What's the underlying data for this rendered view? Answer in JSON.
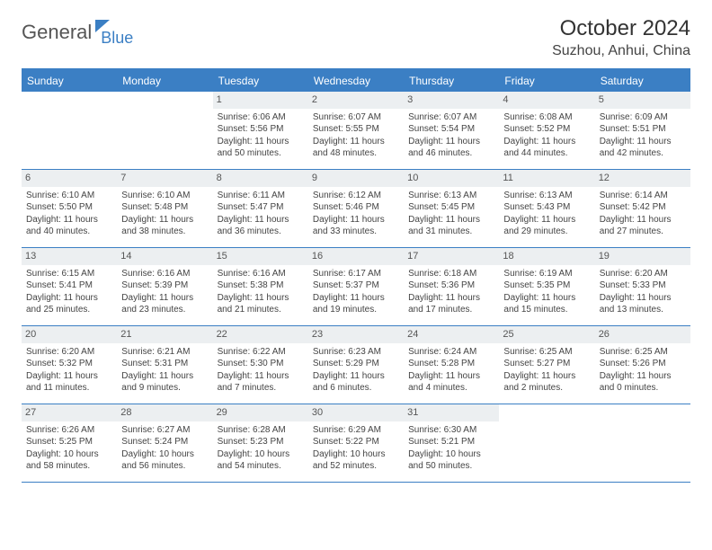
{
  "logo": {
    "general": "General",
    "blue": "Blue"
  },
  "title": "October 2024",
  "location": "Suzhou, Anhui, China",
  "header_bg": "#3b7fc4",
  "daynum_bg": "#eceff1",
  "days_of_week": [
    "Sunday",
    "Monday",
    "Tuesday",
    "Wednesday",
    "Thursday",
    "Friday",
    "Saturday"
  ],
  "weeks": [
    [
      {
        "n": "",
        "sunrise": "",
        "sunset": "",
        "daylight": ""
      },
      {
        "n": "",
        "sunrise": "",
        "sunset": "",
        "daylight": ""
      },
      {
        "n": "1",
        "sunrise": "Sunrise: 6:06 AM",
        "sunset": "Sunset: 5:56 PM",
        "daylight": "Daylight: 11 hours and 50 minutes."
      },
      {
        "n": "2",
        "sunrise": "Sunrise: 6:07 AM",
        "sunset": "Sunset: 5:55 PM",
        "daylight": "Daylight: 11 hours and 48 minutes."
      },
      {
        "n": "3",
        "sunrise": "Sunrise: 6:07 AM",
        "sunset": "Sunset: 5:54 PM",
        "daylight": "Daylight: 11 hours and 46 minutes."
      },
      {
        "n": "4",
        "sunrise": "Sunrise: 6:08 AM",
        "sunset": "Sunset: 5:52 PM",
        "daylight": "Daylight: 11 hours and 44 minutes."
      },
      {
        "n": "5",
        "sunrise": "Sunrise: 6:09 AM",
        "sunset": "Sunset: 5:51 PM",
        "daylight": "Daylight: 11 hours and 42 minutes."
      }
    ],
    [
      {
        "n": "6",
        "sunrise": "Sunrise: 6:10 AM",
        "sunset": "Sunset: 5:50 PM",
        "daylight": "Daylight: 11 hours and 40 minutes."
      },
      {
        "n": "7",
        "sunrise": "Sunrise: 6:10 AM",
        "sunset": "Sunset: 5:48 PM",
        "daylight": "Daylight: 11 hours and 38 minutes."
      },
      {
        "n": "8",
        "sunrise": "Sunrise: 6:11 AM",
        "sunset": "Sunset: 5:47 PM",
        "daylight": "Daylight: 11 hours and 36 minutes."
      },
      {
        "n": "9",
        "sunrise": "Sunrise: 6:12 AM",
        "sunset": "Sunset: 5:46 PM",
        "daylight": "Daylight: 11 hours and 33 minutes."
      },
      {
        "n": "10",
        "sunrise": "Sunrise: 6:13 AM",
        "sunset": "Sunset: 5:45 PM",
        "daylight": "Daylight: 11 hours and 31 minutes."
      },
      {
        "n": "11",
        "sunrise": "Sunrise: 6:13 AM",
        "sunset": "Sunset: 5:43 PM",
        "daylight": "Daylight: 11 hours and 29 minutes."
      },
      {
        "n": "12",
        "sunrise": "Sunrise: 6:14 AM",
        "sunset": "Sunset: 5:42 PM",
        "daylight": "Daylight: 11 hours and 27 minutes."
      }
    ],
    [
      {
        "n": "13",
        "sunrise": "Sunrise: 6:15 AM",
        "sunset": "Sunset: 5:41 PM",
        "daylight": "Daylight: 11 hours and 25 minutes."
      },
      {
        "n": "14",
        "sunrise": "Sunrise: 6:16 AM",
        "sunset": "Sunset: 5:39 PM",
        "daylight": "Daylight: 11 hours and 23 minutes."
      },
      {
        "n": "15",
        "sunrise": "Sunrise: 6:16 AM",
        "sunset": "Sunset: 5:38 PM",
        "daylight": "Daylight: 11 hours and 21 minutes."
      },
      {
        "n": "16",
        "sunrise": "Sunrise: 6:17 AM",
        "sunset": "Sunset: 5:37 PM",
        "daylight": "Daylight: 11 hours and 19 minutes."
      },
      {
        "n": "17",
        "sunrise": "Sunrise: 6:18 AM",
        "sunset": "Sunset: 5:36 PM",
        "daylight": "Daylight: 11 hours and 17 minutes."
      },
      {
        "n": "18",
        "sunrise": "Sunrise: 6:19 AM",
        "sunset": "Sunset: 5:35 PM",
        "daylight": "Daylight: 11 hours and 15 minutes."
      },
      {
        "n": "19",
        "sunrise": "Sunrise: 6:20 AM",
        "sunset": "Sunset: 5:33 PM",
        "daylight": "Daylight: 11 hours and 13 minutes."
      }
    ],
    [
      {
        "n": "20",
        "sunrise": "Sunrise: 6:20 AM",
        "sunset": "Sunset: 5:32 PM",
        "daylight": "Daylight: 11 hours and 11 minutes."
      },
      {
        "n": "21",
        "sunrise": "Sunrise: 6:21 AM",
        "sunset": "Sunset: 5:31 PM",
        "daylight": "Daylight: 11 hours and 9 minutes."
      },
      {
        "n": "22",
        "sunrise": "Sunrise: 6:22 AM",
        "sunset": "Sunset: 5:30 PM",
        "daylight": "Daylight: 11 hours and 7 minutes."
      },
      {
        "n": "23",
        "sunrise": "Sunrise: 6:23 AM",
        "sunset": "Sunset: 5:29 PM",
        "daylight": "Daylight: 11 hours and 6 minutes."
      },
      {
        "n": "24",
        "sunrise": "Sunrise: 6:24 AM",
        "sunset": "Sunset: 5:28 PM",
        "daylight": "Daylight: 11 hours and 4 minutes."
      },
      {
        "n": "25",
        "sunrise": "Sunrise: 6:25 AM",
        "sunset": "Sunset: 5:27 PM",
        "daylight": "Daylight: 11 hours and 2 minutes."
      },
      {
        "n": "26",
        "sunrise": "Sunrise: 6:25 AM",
        "sunset": "Sunset: 5:26 PM",
        "daylight": "Daylight: 11 hours and 0 minutes."
      }
    ],
    [
      {
        "n": "27",
        "sunrise": "Sunrise: 6:26 AM",
        "sunset": "Sunset: 5:25 PM",
        "daylight": "Daylight: 10 hours and 58 minutes."
      },
      {
        "n": "28",
        "sunrise": "Sunrise: 6:27 AM",
        "sunset": "Sunset: 5:24 PM",
        "daylight": "Daylight: 10 hours and 56 minutes."
      },
      {
        "n": "29",
        "sunrise": "Sunrise: 6:28 AM",
        "sunset": "Sunset: 5:23 PM",
        "daylight": "Daylight: 10 hours and 54 minutes."
      },
      {
        "n": "30",
        "sunrise": "Sunrise: 6:29 AM",
        "sunset": "Sunset: 5:22 PM",
        "daylight": "Daylight: 10 hours and 52 minutes."
      },
      {
        "n": "31",
        "sunrise": "Sunrise: 6:30 AM",
        "sunset": "Sunset: 5:21 PM",
        "daylight": "Daylight: 10 hours and 50 minutes."
      },
      {
        "n": "",
        "sunrise": "",
        "sunset": "",
        "daylight": ""
      },
      {
        "n": "",
        "sunrise": "",
        "sunset": "",
        "daylight": ""
      }
    ]
  ]
}
